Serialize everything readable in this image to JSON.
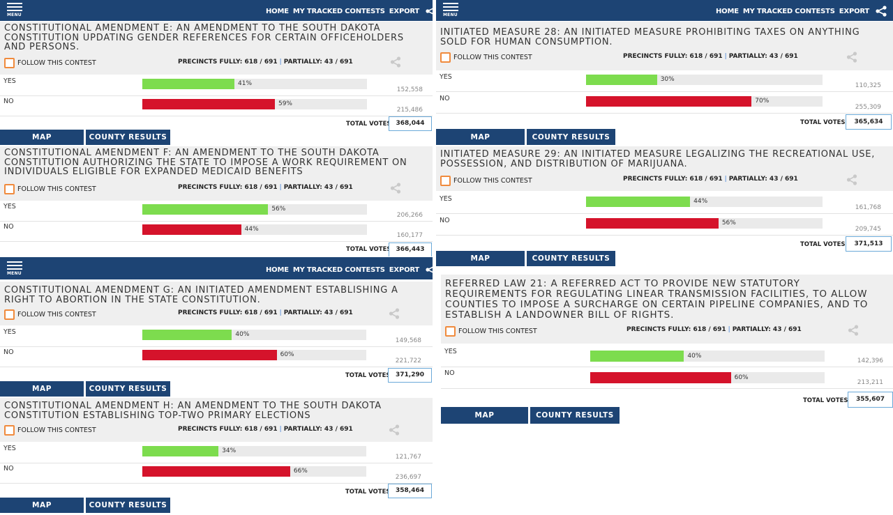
{
  "nav": {
    "menu": "MENU",
    "home": "HOME",
    "tracked": "MY TRACKED CONTESTS",
    "export": "EXPORT"
  },
  "common": {
    "follow": "FOLLOW THIS CONTEST",
    "precincts_fully": "PRECINCTS FULLY: 618 / 691",
    "precincts_partially": "PARTIALLY: 43 / 691",
    "yes": "YES",
    "no": "NO",
    "total_votes": "TOTAL VOTES",
    "map": "MAP",
    "county_results": "COUNTY RESULTS"
  },
  "colors": {
    "nav": "#1d4474",
    "yes_bar": "#7ddc4e",
    "no_bar": "#d5132b",
    "checkbox": "#f08a3c"
  },
  "contests": [
    {
      "title": "Constitutional Amendment E: An amendment to the South Dakota Constitution updating gender references for certain officeholders and persons.",
      "yes_pct": 41,
      "yes_pct_label": "41%",
      "yes_votes": "152,558",
      "no_pct": 59,
      "no_pct_label": "59%",
      "no_votes": "215,486",
      "total": "368,044"
    },
    {
      "title": "Constitutional Amendment F: An amendment to the South Dakota Constitution authorizing the State to impose a work requirement on individuals eligible for expanded Medicaid benefits",
      "yes_pct": 56,
      "yes_pct_label": "56%",
      "yes_votes": "206,266",
      "no_pct": 44,
      "no_pct_label": "44%",
      "no_votes": "160,177",
      "total": "366,443"
    },
    {
      "title": "Constitutional Amendment G: An initiated amendment establishing a right to abortion in the state constitution.",
      "yes_pct": 40,
      "yes_pct_label": "40%",
      "yes_votes": "149,568",
      "no_pct": 60,
      "no_pct_label": "60%",
      "no_votes": "221,722",
      "total": "371,290"
    },
    {
      "title": "Constitutional Amendment H: An amendment to the South Dakota Constitution establishing top-two primary elections",
      "yes_pct": 34,
      "yes_pct_label": "34%",
      "yes_votes": "121,767",
      "no_pct": 66,
      "no_pct_label": "66%",
      "no_votes": "236,697",
      "total": "358,464"
    },
    {
      "title": "Initiated Measure 28: An initiated measure prohibiting taxes on anything sold for human consumption.",
      "yes_pct": 30,
      "yes_pct_label": "30%",
      "yes_votes": "110,325",
      "no_pct": 70,
      "no_pct_label": "70%",
      "no_votes": "255,309",
      "total": "365,634"
    },
    {
      "title": "Initiated Measure 29: An initiated measure legalizing the recreational use, possession, and distribution of marijuana.",
      "yes_pct": 44,
      "yes_pct_label": "44%",
      "yes_votes": "161,768",
      "no_pct": 56,
      "no_pct_label": "56%",
      "no_votes": "209,745",
      "total": "371,513"
    },
    {
      "title": "Referred Law 21: A referred act to provide new statutory requirements for regulating linear transmission facilities, to allow counties to impose a surcharge on certain pipeline companies, and to establish a landowner bill of rights.",
      "yes_pct": 40,
      "yes_pct_label": "40%",
      "yes_votes": "142,396",
      "no_pct": 60,
      "no_pct_label": "60%",
      "no_votes": "213,211",
      "total": "355,607"
    }
  ]
}
